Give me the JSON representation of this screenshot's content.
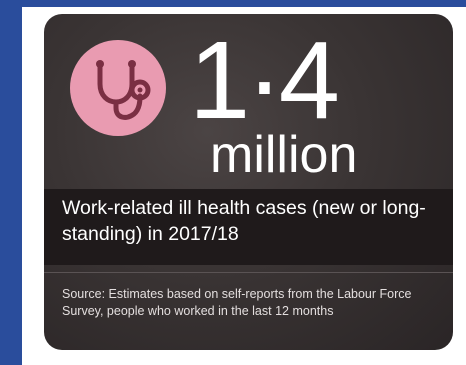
{
  "infographic": {
    "icon": "stethoscope-icon",
    "figure": "1·4",
    "unit": "million",
    "headline": "Work-related ill health cases (new or long-standing) in 2017/18",
    "source": "Source: Estimates based on self-reports from the Labour Force Survey, people who worked in the last 12 months"
  },
  "colors": {
    "frame_blue": "#2a4d9c",
    "card_background": "#3a3434",
    "band_background": "#1f1a1b",
    "badge_pink": "#e99bb1",
    "icon_maroon": "#7a2f43",
    "text": "#ffffff"
  }
}
